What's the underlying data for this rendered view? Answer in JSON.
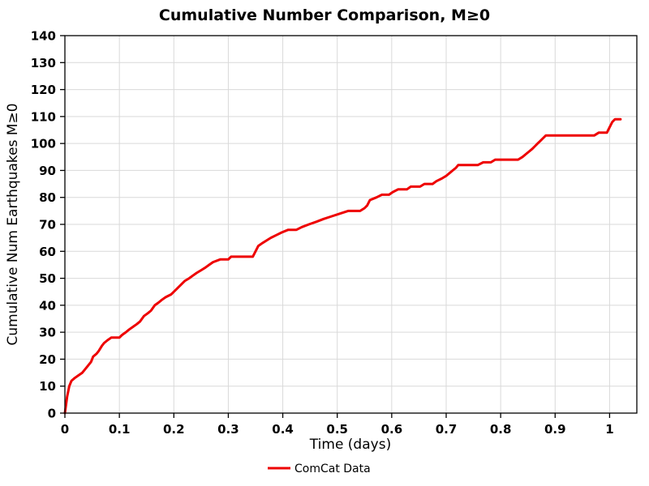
{
  "chart_data": {
    "type": "line",
    "title": "Cumulative Number Comparison, M≥0",
    "xlabel": "Time (days)",
    "ylabel": "Cumulative Num Earthquakes M≥0",
    "xlim": [
      0,
      1.05
    ],
    "ylim": [
      0,
      140
    ],
    "xticks": [
      0,
      0.1,
      0.2,
      0.3,
      0.4,
      0.5,
      0.6,
      0.7,
      0.8,
      0.9,
      1
    ],
    "xtick_labels": [
      "0",
      "0.1",
      "0.2",
      "0.3",
      "0.4",
      "0.5",
      "0.6",
      "0.7",
      "0.8",
      "0.9",
      "1"
    ],
    "yticks": [
      0,
      10,
      20,
      30,
      40,
      50,
      60,
      70,
      80,
      90,
      100,
      110,
      120,
      130,
      140
    ],
    "ytick_labels": [
      "0",
      "10",
      "20",
      "30",
      "40",
      "50",
      "60",
      "70",
      "80",
      "90",
      "100",
      "110",
      "120",
      "130",
      "140"
    ],
    "grid": true,
    "legend_position": "bottom-center",
    "legend": [
      {
        "label": "ComCat Data",
        "color": "#ee0000"
      }
    ],
    "series": [
      {
        "name": "ComCat Data",
        "color": "#ee0000",
        "line_width": 3,
        "points": [
          [
            0,
            0
          ],
          [
            0.004,
            6
          ],
          [
            0.008,
            10
          ],
          [
            0.012,
            12
          ],
          [
            0.018,
            13
          ],
          [
            0.025,
            14
          ],
          [
            0.032,
            15
          ],
          [
            0.04,
            17
          ],
          [
            0.048,
            19
          ],
          [
            0.052,
            21
          ],
          [
            0.058,
            22
          ],
          [
            0.062,
            23
          ],
          [
            0.068,
            25
          ],
          [
            0.072,
            26
          ],
          [
            0.078,
            27
          ],
          [
            0.085,
            28
          ],
          [
            0.1,
            28
          ],
          [
            0.105,
            29
          ],
          [
            0.112,
            30
          ],
          [
            0.118,
            31
          ],
          [
            0.125,
            32
          ],
          [
            0.132,
            33
          ],
          [
            0.138,
            34
          ],
          [
            0.145,
            36
          ],
          [
            0.152,
            37
          ],
          [
            0.158,
            38
          ],
          [
            0.165,
            40
          ],
          [
            0.172,
            41
          ],
          [
            0.178,
            42
          ],
          [
            0.185,
            43
          ],
          [
            0.195,
            44
          ],
          [
            0.2,
            45
          ],
          [
            0.205,
            46
          ],
          [
            0.21,
            47
          ],
          [
            0.215,
            48
          ],
          [
            0.22,
            49
          ],
          [
            0.228,
            50
          ],
          [
            0.235,
            51
          ],
          [
            0.242,
            52
          ],
          [
            0.25,
            53
          ],
          [
            0.258,
            54
          ],
          [
            0.265,
            55
          ],
          [
            0.272,
            56
          ],
          [
            0.285,
            57
          ],
          [
            0.3,
            57
          ],
          [
            0.305,
            58
          ],
          [
            0.345,
            58
          ],
          [
            0.35,
            60
          ],
          [
            0.355,
            62
          ],
          [
            0.362,
            63
          ],
          [
            0.37,
            64
          ],
          [
            0.378,
            65
          ],
          [
            0.388,
            66
          ],
          [
            0.398,
            67
          ],
          [
            0.41,
            68
          ],
          [
            0.425,
            68
          ],
          [
            0.435,
            69
          ],
          [
            0.448,
            70
          ],
          [
            0.462,
            71
          ],
          [
            0.475,
            72
          ],
          [
            0.49,
            73
          ],
          [
            0.505,
            74
          ],
          [
            0.52,
            75
          ],
          [
            0.542,
            75
          ],
          [
            0.55,
            76
          ],
          [
            0.555,
            77
          ],
          [
            0.56,
            79
          ],
          [
            0.572,
            80
          ],
          [
            0.582,
            81
          ],
          [
            0.595,
            81
          ],
          [
            0.602,
            82
          ],
          [
            0.612,
            83
          ],
          [
            0.628,
            83
          ],
          [
            0.635,
            84
          ],
          [
            0.652,
            84
          ],
          [
            0.66,
            85
          ],
          [
            0.675,
            85
          ],
          [
            0.682,
            86
          ],
          [
            0.692,
            87
          ],
          [
            0.7,
            88
          ],
          [
            0.706,
            89
          ],
          [
            0.712,
            90
          ],
          [
            0.718,
            91
          ],
          [
            0.722,
            92
          ],
          [
            0.758,
            92
          ],
          [
            0.768,
            93
          ],
          [
            0.782,
            93
          ],
          [
            0.79,
            94
          ],
          [
            0.8,
            94
          ],
          [
            0.832,
            94
          ],
          [
            0.84,
            95
          ],
          [
            0.846,
            96
          ],
          [
            0.852,
            97
          ],
          [
            0.858,
            98
          ],
          [
            0.863,
            99
          ],
          [
            0.868,
            100
          ],
          [
            0.873,
            101
          ],
          [
            0.878,
            102
          ],
          [
            0.883,
            103
          ],
          [
            0.93,
            103
          ],
          [
            0.972,
            103
          ],
          [
            0.98,
            104
          ],
          [
            0.995,
            104
          ],
          [
            1.0,
            106
          ],
          [
            1.005,
            108
          ],
          [
            1.01,
            109
          ],
          [
            1.02,
            109
          ]
        ]
      }
    ]
  }
}
